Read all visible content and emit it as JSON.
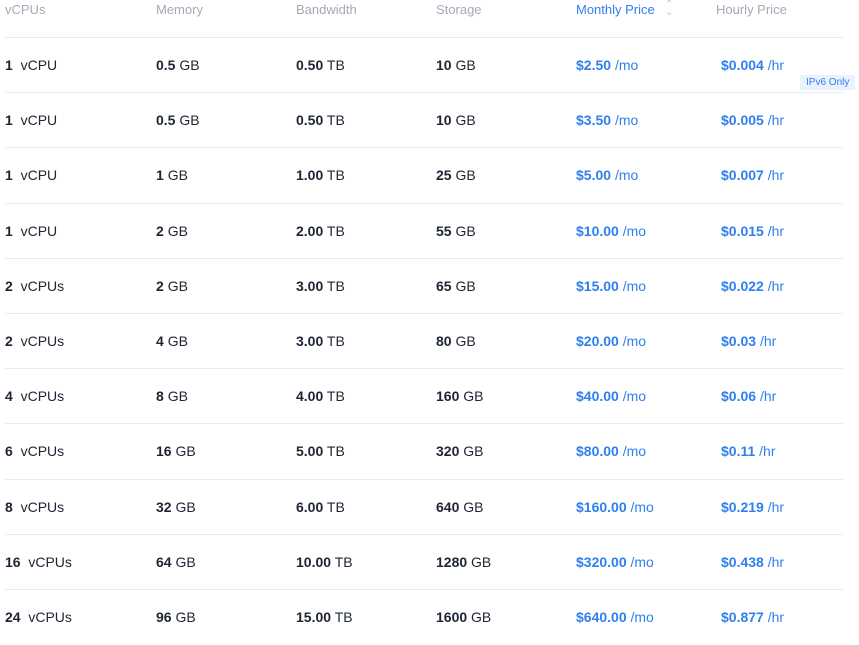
{
  "headers": {
    "vcpus": "vCPUs",
    "memory": "Memory",
    "bandwidth": "Bandwidth",
    "storage": "Storage",
    "monthly": "Monthly Price",
    "hourly": "Hourly Price"
  },
  "sort_icon": "sort-chevrons-icon",
  "badge": "IPv6 Only",
  "colors": {
    "accent": "#2f7fef",
    "text": "#1d2433",
    "header": "#a3a9b5"
  },
  "rows": [
    {
      "cpu": "1",
      "cpu_unit": "vCPU",
      "mem": "0.5",
      "mem_unit": "GB",
      "bw": "0.50",
      "bw_unit": "TB",
      "sto": "10",
      "sto_unit": "GB",
      "mo": "$2.50",
      "mo_unit": "/mo",
      "hr": "$0.004",
      "hr_unit": "/hr"
    },
    {
      "cpu": "1",
      "cpu_unit": "vCPU",
      "mem": "0.5",
      "mem_unit": "GB",
      "bw": "0.50",
      "bw_unit": "TB",
      "sto": "10",
      "sto_unit": "GB",
      "mo": "$3.50",
      "mo_unit": "/mo",
      "hr": "$0.005",
      "hr_unit": "/hr"
    },
    {
      "cpu": "1",
      "cpu_unit": "vCPU",
      "mem": "1",
      "mem_unit": "GB",
      "bw": "1.00",
      "bw_unit": "TB",
      "sto": "25",
      "sto_unit": "GB",
      "mo": "$5.00",
      "mo_unit": "/mo",
      "hr": "$0.007",
      "hr_unit": "/hr"
    },
    {
      "cpu": "1",
      "cpu_unit": "vCPU",
      "mem": "2",
      "mem_unit": "GB",
      "bw": "2.00",
      "bw_unit": "TB",
      "sto": "55",
      "sto_unit": "GB",
      "mo": "$10.00",
      "mo_unit": "/mo",
      "hr": "$0.015",
      "hr_unit": "/hr"
    },
    {
      "cpu": "2",
      "cpu_unit": "vCPUs",
      "mem": "2",
      "mem_unit": "GB",
      "bw": "3.00",
      "bw_unit": "TB",
      "sto": "65",
      "sto_unit": "GB",
      "mo": "$15.00",
      "mo_unit": "/mo",
      "hr": "$0.022",
      "hr_unit": "/hr"
    },
    {
      "cpu": "2",
      "cpu_unit": "vCPUs",
      "mem": "4",
      "mem_unit": "GB",
      "bw": "3.00",
      "bw_unit": "TB",
      "sto": "80",
      "sto_unit": "GB",
      "mo": "$20.00",
      "mo_unit": "/mo",
      "hr": "$0.03",
      "hr_unit": "/hr"
    },
    {
      "cpu": "4",
      "cpu_unit": "vCPUs",
      "mem": "8",
      "mem_unit": "GB",
      "bw": "4.00",
      "bw_unit": "TB",
      "sto": "160",
      "sto_unit": "GB",
      "mo": "$40.00",
      "mo_unit": "/mo",
      "hr": "$0.06",
      "hr_unit": "/hr"
    },
    {
      "cpu": "6",
      "cpu_unit": "vCPUs",
      "mem": "16",
      "mem_unit": "GB",
      "bw": "5.00",
      "bw_unit": "TB",
      "sto": "320",
      "sto_unit": "GB",
      "mo": "$80.00",
      "mo_unit": "/mo",
      "hr": "$0.11",
      "hr_unit": "/hr"
    },
    {
      "cpu": "8",
      "cpu_unit": "vCPUs",
      "mem": "32",
      "mem_unit": "GB",
      "bw": "6.00",
      "bw_unit": "TB",
      "sto": "640",
      "sto_unit": "GB",
      "mo": "$160.00",
      "mo_unit": "/mo",
      "hr": "$0.219",
      "hr_unit": "/hr"
    },
    {
      "cpu": "16",
      "cpu_unit": "vCPUs",
      "mem": "64",
      "mem_unit": "GB",
      "bw": "10.00",
      "bw_unit": "TB",
      "sto": "1280",
      "sto_unit": "GB",
      "mo": "$320.00",
      "mo_unit": "/mo",
      "hr": "$0.438",
      "hr_unit": "/hr"
    },
    {
      "cpu": "24",
      "cpu_unit": "vCPUs",
      "mem": "96",
      "mem_unit": "GB",
      "bw": "15.00",
      "bw_unit": "TB",
      "sto": "1600",
      "sto_unit": "GB",
      "mo": "$640.00",
      "mo_unit": "/mo",
      "hr": "$0.877",
      "hr_unit": "/hr"
    }
  ]
}
